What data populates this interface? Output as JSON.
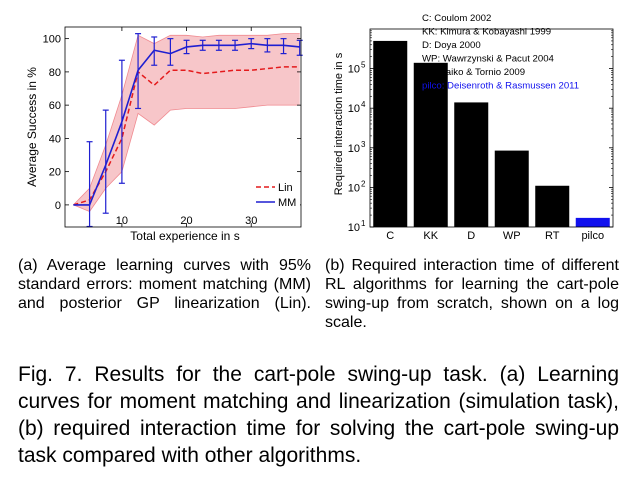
{
  "chart_data": [
    {
      "type": "line",
      "ylabel": "Average Success in %",
      "xlabel": "Total experience in s",
      "xlim": [
        1.2,
        37.7
      ],
      "ylim": [
        -13.3,
        107
      ],
      "x_ticks": [
        10,
        20,
        30
      ],
      "y_ticks": [
        0,
        20,
        40,
        60,
        80,
        100
      ],
      "grid": false,
      "legend_position": "bottom-right",
      "colors": {
        "Lin": "#e41a1c",
        "MM": "#1f1fd1",
        "band": "#f7c6c9"
      },
      "series": [
        {
          "name": "Lin",
          "style": "dashed",
          "x": [
            2.5,
            5,
            7.5,
            10,
            12.5,
            15,
            17.5,
            20,
            22.5,
            25,
            27.5,
            30,
            32.5,
            35,
            37.5
          ],
          "values": [
            0,
            3,
            20,
            40,
            80,
            72,
            81,
            81,
            79,
            80,
            81,
            81,
            82,
            83,
            83
          ],
          "band_upper": [
            0,
            10,
            36,
            66,
            102,
            97,
            102,
            102,
            101,
            102,
            102,
            102,
            102,
            103,
            103
          ],
          "band_lower": [
            0,
            -4,
            10,
            20,
            55,
            48,
            57,
            58,
            58,
            58,
            58,
            59,
            60,
            60,
            60
          ]
        },
        {
          "name": "MM",
          "style": "solid",
          "x": [
            2.5,
            5,
            7.5,
            10,
            12.5,
            15,
            17.5,
            20,
            22.5,
            25,
            27.5,
            30,
            32.5,
            35,
            37.5
          ],
          "values": [
            0,
            0,
            24,
            50,
            81,
            93,
            91,
            95,
            96,
            96,
            96,
            97,
            96,
            96,
            95
          ],
          "err_upper": [
            0,
            38,
            57,
            87,
            103,
            101,
            100,
            99,
            99,
            99,
            99,
            100,
            100,
            100,
            99
          ],
          "err_lower": [
            0,
            -13,
            -5,
            13,
            58,
            84,
            84,
            91,
            93,
            93,
            93,
            94,
            92,
            91,
            90
          ]
        }
      ]
    },
    {
      "type": "bar",
      "ylabel": "Required interaction time in s",
      "y_scale": "log",
      "ylim": [
        10,
        1000000
      ],
      "y_ticks": [
        {
          "value": 10,
          "base": "10",
          "exp": "1"
        },
        {
          "value": 100,
          "base": "10",
          "exp": "2"
        },
        {
          "value": 1000,
          "base": "10",
          "exp": "3"
        },
        {
          "value": 10000,
          "base": "10",
          "exp": "4"
        },
        {
          "value": 100000,
          "base": "10",
          "exp": "5"
        }
      ],
      "categories": [
        "C",
        "KK",
        "D",
        "WP",
        "RT",
        "pilco"
      ],
      "values": [
        500000,
        140000,
        14000,
        850,
        110,
        17
      ],
      "bar_colors": [
        "#000000",
        "#000000",
        "#000000",
        "#000000",
        "#000000",
        "#1111ee"
      ],
      "legend_position": "top-right",
      "legend": [
        {
          "text": "C: Coulom 2002",
          "color": "#000000"
        },
        {
          "text": "KK: Kimura & Kobayashi 1999",
          "color": "#000000"
        },
        {
          "text": "D: Doya 2000",
          "color": "#000000"
        },
        {
          "text": "WP: Wawrzynski & Pacut 2004",
          "color": "#000000"
        },
        {
          "text": "RT: Raiko & Tornio 2009",
          "color": "#000000"
        },
        {
          "text": "pilco: Deisenroth & Rasmussen 2011",
          "color": "#1111ee"
        }
      ]
    }
  ],
  "captions": {
    "a": "(a) Average learning curves with 95% standard errors: moment matching (MM) and posterior GP linearization (Lin).",
    "b": "(b) Required interaction time of different RL algorithms for learning the cart-pole swing-up from scratch, shown on a log scale.",
    "figure": "Fig. 7. Results for the cart-pole swing-up task. (a) Learning curves for moment matching and linearization (simulation task), (b) required interaction time for solving the cart-pole swing-up task compared with other algorithms."
  }
}
